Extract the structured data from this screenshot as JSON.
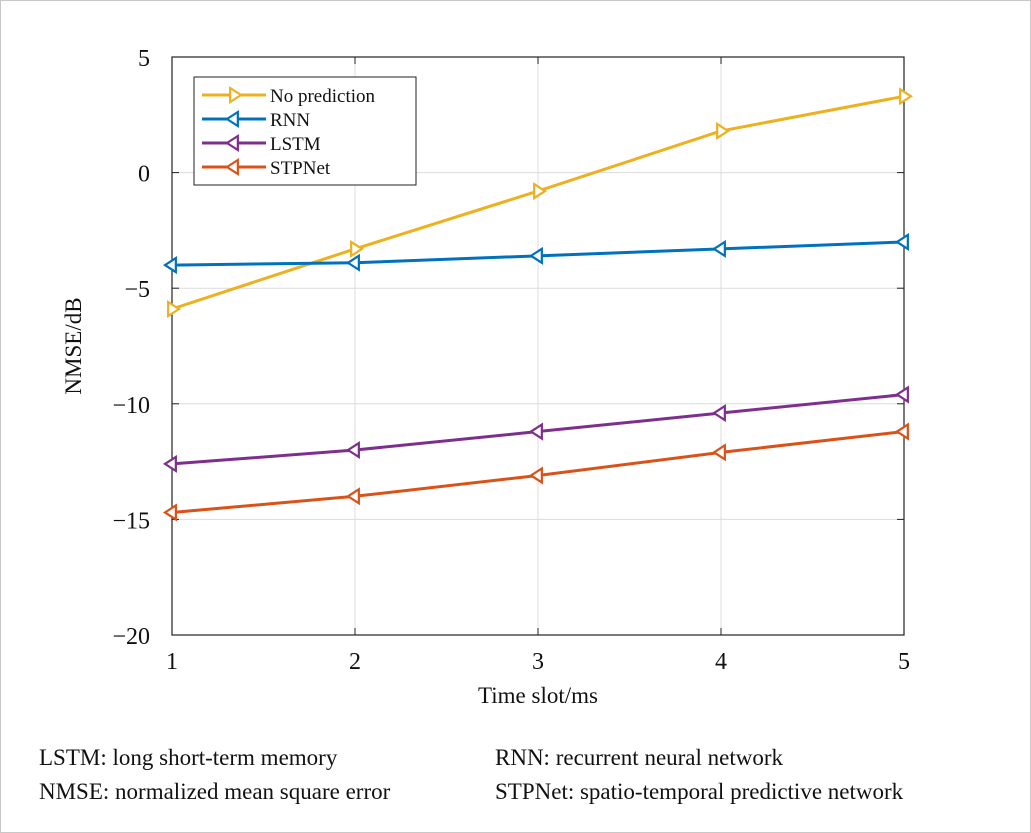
{
  "chart_data": {
    "type": "line",
    "x": [
      1,
      2,
      3,
      4,
      5
    ],
    "xlabel": "Time slot/ms",
    "ylabel": "NMSE/dB",
    "xlim": [
      1,
      5
    ],
    "ylim": [
      -20,
      5
    ],
    "xticks": [
      1,
      2,
      3,
      4,
      5
    ],
    "yticks": [
      5,
      0,
      -5,
      -10,
      -15,
      -20
    ],
    "ytick_labels": [
      "5",
      "0",
      "−5",
      "−10",
      "−15",
      "−20"
    ],
    "grid": true,
    "legend_position": "top-left",
    "series": [
      {
        "name": "No prediction",
        "color": "#EDB120",
        "marker": "triangle-right",
        "values": [
          -5.9,
          -3.3,
          -0.8,
          1.8,
          3.3
        ]
      },
      {
        "name": "RNN",
        "color": "#0072BD",
        "marker": "triangle-left",
        "values": [
          -4.0,
          -3.9,
          -3.6,
          -3.3,
          -3.0
        ]
      },
      {
        "name": "LSTM",
        "color": "#7E2F8E",
        "marker": "triangle-left",
        "values": [
          -12.6,
          -12.0,
          -11.2,
          -10.4,
          -9.6
        ]
      },
      {
        "name": "STPNet",
        "color": "#D95319",
        "marker": "triangle-left",
        "values": [
          -14.7,
          -14.0,
          -13.1,
          -12.1,
          -11.2
        ]
      }
    ]
  },
  "footnotes": {
    "lstm": "LSTM: long short-term memory",
    "rnn": "RNN: recurrent neural network",
    "nmse": "NMSE: normalized mean square error",
    "stpnet": "STPNet: spatio-temporal predictive network"
  }
}
